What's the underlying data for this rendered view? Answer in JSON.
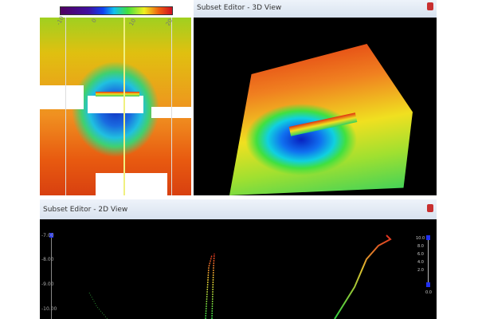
{
  "plan_view": {
    "colorbar_ticks": [
      "-10",
      "0",
      "10",
      "20"
    ],
    "colors": {
      "deep": "#1030c0",
      "shallow": "#d84010"
    }
  },
  "view3d": {
    "title": "Subset Editor - 3D View"
  },
  "view2d": {
    "title": "Subset Editor - 2D View",
    "y_ticks": [
      "-7.00",
      "-8.00",
      "-9.00",
      "-10.00"
    ],
    "right_scale": [
      "10.0",
      "8.0",
      "6.0",
      "4.0",
      "2.0",
      "0.0"
    ]
  }
}
